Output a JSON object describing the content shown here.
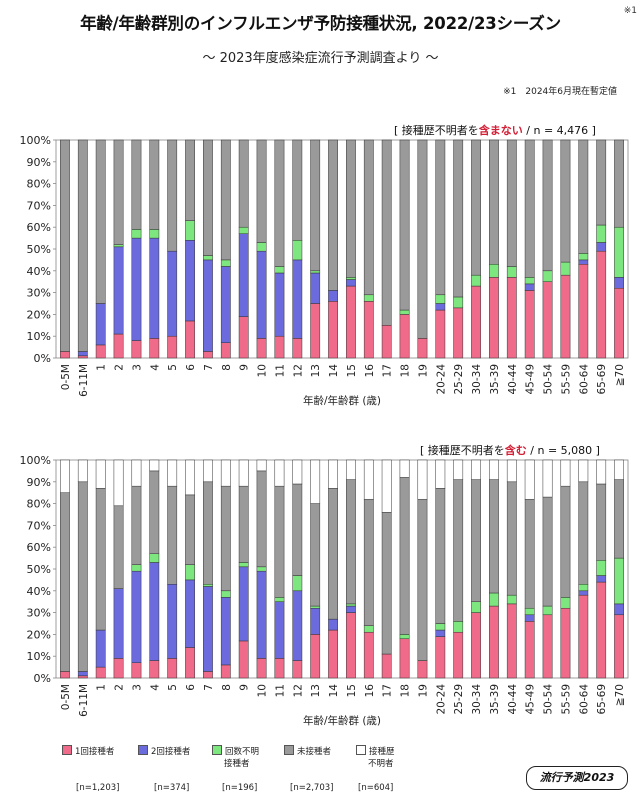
{
  "title": "年齢/年齢群別のインフルエンザ予防接種状況, 2022/23シーズン",
  "title_note": "※1",
  "subtitle": "〜 2023年度感染症流行予測調査より 〜",
  "as_of_note": "※1　2024年6月現在暫定値",
  "colors": {
    "dose1": "#f06b8a",
    "dose2": "#6b6bdd",
    "unknown_count": "#7ee67e",
    "unvaccinated": "#9a9a9a",
    "unknown_history": "#ffffff",
    "note_red": "#d41e35"
  },
  "legend": {
    "items": [
      {
        "label": "1回接種者",
        "n": "[n=1,203]"
      },
      {
        "label": "2回接種者",
        "n": "[n=374]"
      },
      {
        "label": "回数不明接種者",
        "line1": "回数不明",
        "line2": "接種者",
        "n": "[n=196]"
      },
      {
        "label": "未接種者",
        "n": "[n=2,703]"
      },
      {
        "label": "接種歴不明者",
        "line1": "接種歴",
        "line2": "不明者",
        "n": "[n=604]"
      }
    ]
  },
  "brand": "流行予測2023",
  "chart_data": [
    {
      "type": "bar",
      "stacked": true,
      "note_prefix": "[ 接種歴不明者を",
      "note_highlight": "含まない",
      "note_suffix": "/ n = 4,476 ]",
      "xlabel": "年齢/年齢群 (歳)",
      "ylabel": "",
      "ylim": [
        0,
        100
      ],
      "yticks": [
        "0%",
        "10%",
        "20%",
        "30%",
        "40%",
        "50%",
        "60%",
        "70%",
        "80%",
        "90%",
        "100%"
      ],
      "categories": [
        "0-5M",
        "6-11M",
        "1",
        "2",
        "3",
        "4",
        "5",
        "6",
        "7",
        "8",
        "9",
        "10",
        "11",
        "12",
        "13",
        "14",
        "15",
        "16",
        "17",
        "18",
        "19",
        "20-24",
        "25-29",
        "30-34",
        "35-39",
        "40-44",
        "45-49",
        "50-54",
        "55-59",
        "60-64",
        "65-69",
        "≧70"
      ],
      "series": [
        {
          "name": "1回接種者",
          "values": [
            3,
            1,
            6,
            11,
            8,
            9,
            10,
            17,
            3,
            7,
            19,
            9,
            10,
            9,
            25,
            26,
            33,
            26,
            15,
            20,
            9,
            22,
            23,
            33,
            37,
            37,
            31,
            35,
            38,
            43,
            49,
            32
          ]
        },
        {
          "name": "2回接種者",
          "values": [
            0,
            2,
            19,
            40,
            47,
            46,
            39,
            37,
            42,
            35,
            38,
            40,
            29,
            36,
            14,
            5,
            3,
            0,
            0,
            0,
            0,
            3,
            0,
            0,
            0,
            0,
            3,
            0,
            0,
            2,
            4,
            5
          ]
        },
        {
          "name": "回数不明接種者",
          "values": [
            0,
            0,
            0,
            1,
            4,
            4,
            0,
            9,
            2,
            3,
            3,
            4,
            3,
            9,
            1,
            0,
            1,
            3,
            0,
            2,
            0,
            4,
            5,
            5,
            6,
            5,
            3,
            5,
            6,
            3,
            8,
            23
          ]
        },
        {
          "name": "未接種者",
          "values": [
            97,
            97,
            75,
            48,
            41,
            41,
            51,
            37,
            53,
            55,
            40,
            47,
            58,
            46,
            60,
            69,
            63,
            71,
            85,
            78,
            91,
            71,
            72,
            62,
            57,
            58,
            63,
            60,
            56,
            52,
            39,
            40
          ]
        }
      ]
    },
    {
      "type": "bar",
      "stacked": true,
      "note_prefix": "[ 接種歴不明者を",
      "note_highlight": "含む",
      "note_suffix": "/ n = 5,080 ]",
      "xlabel": "年齢/年齢群 (歳)",
      "ylabel": "",
      "ylim": [
        0,
        100
      ],
      "yticks": [
        "0%",
        "10%",
        "20%",
        "30%",
        "40%",
        "50%",
        "60%",
        "70%",
        "80%",
        "90%",
        "100%"
      ],
      "categories": [
        "0-5M",
        "6-11M",
        "1",
        "2",
        "3",
        "4",
        "5",
        "6",
        "7",
        "8",
        "9",
        "10",
        "11",
        "12",
        "13",
        "14",
        "15",
        "16",
        "17",
        "18",
        "19",
        "20-24",
        "25-29",
        "30-34",
        "35-39",
        "40-44",
        "45-49",
        "50-54",
        "55-59",
        "60-64",
        "65-69",
        "≧70"
      ],
      "series": [
        {
          "name": "1回接種者",
          "values": [
            3,
            1,
            5,
            9,
            7,
            8,
            9,
            14,
            3,
            6,
            17,
            9,
            9,
            8,
            20,
            22,
            30,
            21,
            11,
            18,
            8,
            19,
            21,
            30,
            33,
            34,
            26,
            29,
            32,
            38,
            44,
            29
          ]
        },
        {
          "name": "2回接種者",
          "values": [
            0,
            2,
            17,
            32,
            42,
            45,
            34,
            31,
            39,
            31,
            34,
            40,
            26,
            32,
            12,
            5,
            3,
            0,
            0,
            0,
            0,
            3,
            0,
            0,
            0,
            0,
            3,
            0,
            0,
            2,
            3,
            5
          ]
        },
        {
          "name": "回数不明接種者",
          "values": [
            0,
            0,
            0,
            0,
            3,
            4,
            0,
            7,
            1,
            3,
            2,
            2,
            2,
            7,
            1,
            0,
            1,
            3,
            0,
            2,
            0,
            3,
            5,
            5,
            6,
            4,
            3,
            4,
            5,
            3,
            7,
            21
          ]
        },
        {
          "name": "未接種者",
          "values": [
            82,
            87,
            65,
            38,
            36,
            38,
            45,
            32,
            47,
            48,
            35,
            44,
            51,
            42,
            47,
            60,
            57,
            58,
            65,
            72,
            74,
            62,
            65,
            56,
            52,
            52,
            50,
            50,
            51,
            47,
            35,
            36
          ]
        },
        {
          "name": "接種歴不明者",
          "values": [
            15,
            10,
            13,
            21,
            12,
            5,
            12,
            16,
            10,
            12,
            12,
            5,
            12,
            11,
            20,
            13,
            9,
            18,
            24,
            8,
            18,
            13,
            9,
            9,
            9,
            10,
            18,
            17,
            12,
            10,
            11,
            9
          ]
        }
      ]
    }
  ]
}
